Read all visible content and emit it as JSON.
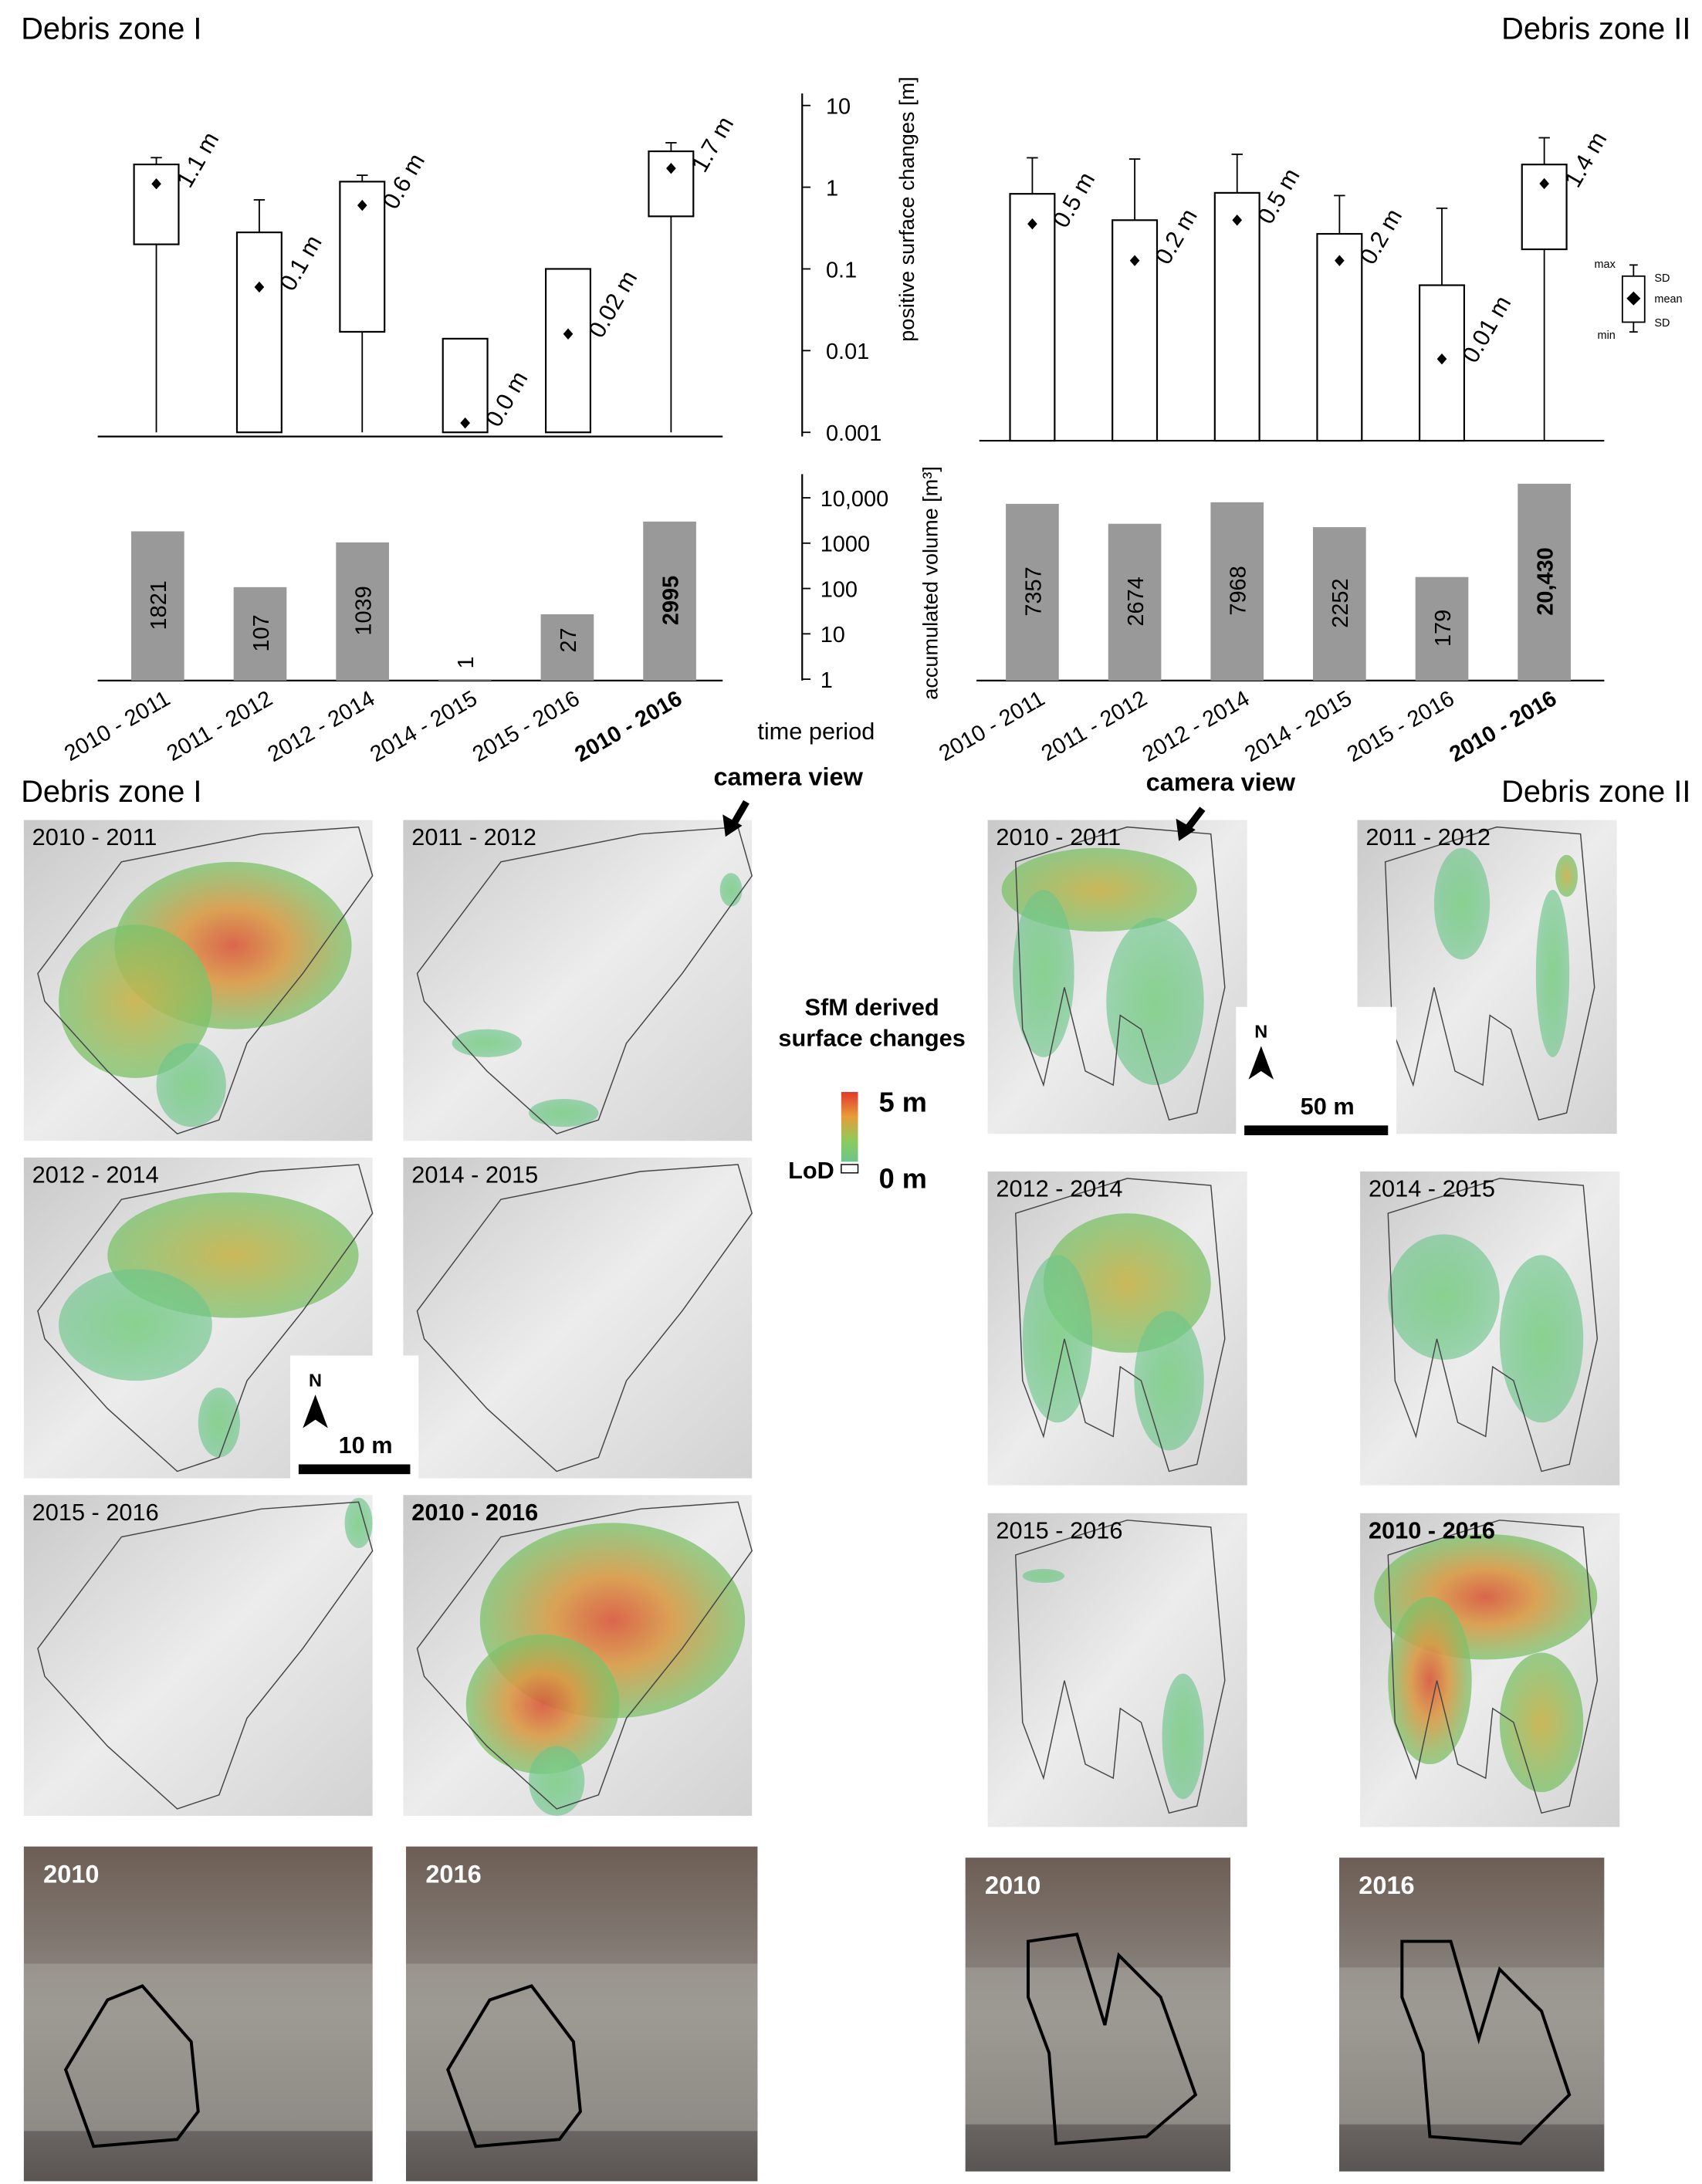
{
  "chart_data": [
    {
      "type": "box",
      "title": "Debris zone I",
      "ylabel": "positive surface changes [m]",
      "log_scale": true,
      "ylim": [
        0.001,
        12
      ],
      "yticks": [
        0.001,
        0.01,
        0.1,
        1,
        10
      ],
      "legend": "right",
      "color": "#000000",
      "series": [
        {
          "name": "max",
          "values": [
            2.3,
            0.7,
            1.4,
            null,
            null,
            3.5
          ]
        },
        {
          "name": "SD",
          "values": [
            1.9,
            0.28,
            1.17,
            0.014,
            0.1,
            2.75
          ]
        },
        {
          "name": "mean",
          "values": [
            1.1,
            0.06,
            0.6,
            0.0013,
            0.016,
            1.7
          ],
          "value_labels": [
            "1.1 m",
            "0.1 m",
            "0.6 m",
            "0.0 m",
            "0.02 m",
            "1.7 m"
          ]
        },
        {
          "name": "SD",
          "values": [
            0.2,
            0.001,
            0.017,
            0.001,
            0.001,
            0.44
          ]
        },
        {
          "name": "min",
          "values": [
            0.001,
            null,
            0.001,
            null,
            null,
            0.001
          ]
        }
      ]
    },
    {
      "type": "bar",
      "ylabel": "accumulated volume [m³]",
      "xlabel": "time period",
      "log_scale": true,
      "categories": [
        "2010 - 2011",
        "2011 - 2012",
        "2012 - 2014",
        "2014 - 2015",
        "2015 - 2016",
        "2010 - 2016"
      ],
      "values": [
        1821,
        107,
        1039,
        1,
        27,
        2995
      ],
      "color": "#999999",
      "bold_last": true,
      "ylim": [
        1,
        25000
      ],
      "yticks": [
        1,
        10,
        100,
        1000,
        {
          "value": 10000,
          "label": "10,000"
        }
      ]
    },
    {
      "type": "box",
      "title": "Debris zone II",
      "log_scale": true,
      "ylim": [
        0.001,
        12
      ],
      "color": "#000000",
      "series": [
        {
          "values": [
            2.9,
            2.8,
            3.2,
            1.0,
            0.7,
            5.1
          ]
        },
        {
          "values": [
            1.05,
            0.5,
            1.08,
            0.34,
            0.08,
            2.4
          ]
        },
        {
          "values": [
            0.45,
            0.16,
            0.5,
            0.16,
            0.01,
            1.4
          ],
          "value_labels": [
            "0.5 m",
            "0.2 m",
            "0.5 m",
            "0.2 m",
            "0.01 m",
            "1.4 m"
          ]
        },
        {
          "values": [
            0.001,
            0.001,
            0.001,
            0.001,
            0.001,
            0.22
          ]
        },
        {
          "values": [
            null,
            null,
            null,
            null,
            null,
            0.001
          ]
        }
      ]
    },
    {
      "type": "bar",
      "log_scale": true,
      "categories": [
        "2010 - 2011",
        "2011 - 2012",
        "2012 - 2014",
        "2014 - 2015",
        "2015 - 2016",
        "2010 - 2016"
      ],
      "values": [
        7357,
        2674,
        7968,
        2252,
        179,
        20430
      ],
      "value_labels": [
        "7357",
        "2674",
        "7968",
        "2252",
        "179",
        "20,430"
      ],
      "color": "#999999",
      "bold_last": true,
      "ylim": [
        1,
        25000
      ]
    }
  ],
  "maps": {
    "zone_I": {
      "title": "Debris zone I",
      "panels": [
        "2010 - 2011",
        "2011 - 2012",
        "2012 - 2014",
        "2014 - 2015",
        "2015 - 2016",
        "2010 - 2016"
      ],
      "photos": [
        "2010",
        "2016"
      ],
      "camera": "camera view",
      "north": "N",
      "scale": "10 m"
    },
    "zone_II": {
      "title": "Debris zone II",
      "panels": [
        "2010 - 2011",
        "2011 - 2012",
        "2012 - 2014",
        "2014 - 2015",
        "2015 - 2016",
        "2010 - 2016"
      ],
      "photos": [
        "2010",
        "2016"
      ],
      "camera": "camera view",
      "north": "N",
      "scale": "50 m"
    },
    "legend": {
      "title": [
        "SfM derived",
        "surface changes"
      ],
      "max": "5 m",
      "min": "0 m",
      "lod": "LoD"
    }
  }
}
